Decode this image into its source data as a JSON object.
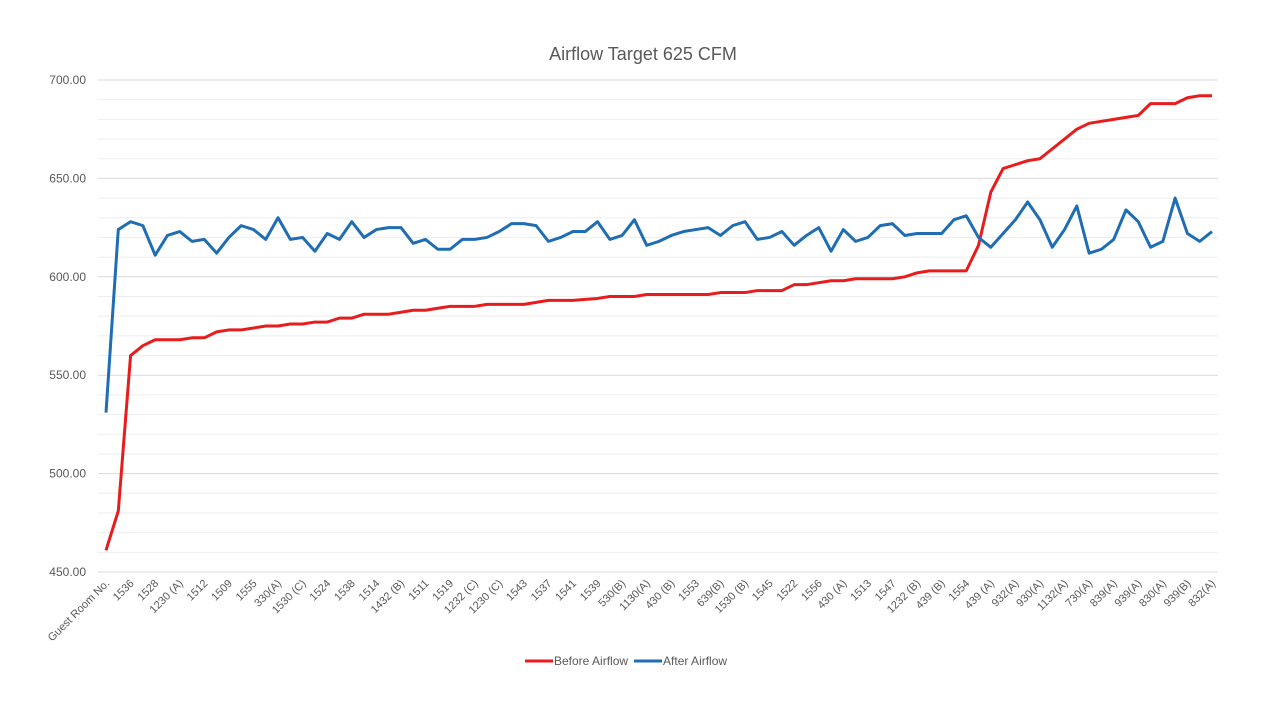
{
  "chart_data": {
    "type": "line",
    "title": "Airflow Target  625 CFM",
    "categories": [
      "Guest Room No.",
      null,
      "1536",
      null,
      "1528",
      null,
      "1230 (A)",
      null,
      "1512",
      null,
      "1509",
      null,
      "1555",
      null,
      "330(A)",
      null,
      "1530 (C)",
      null,
      "1524",
      null,
      "1538",
      null,
      "1514",
      null,
      "1432 (B)",
      null,
      "1511",
      null,
      "1519",
      null,
      "1232 (C)",
      null,
      "1230 (C)",
      null,
      "1543",
      null,
      "1537",
      null,
      "1541",
      null,
      "1539",
      null,
      "530(B)",
      null,
      "1130(A)",
      null,
      "430 (B)",
      null,
      "1553",
      null,
      "639(B)",
      null,
      "1530 (B)",
      null,
      "1545",
      null,
      "1522",
      null,
      "1556",
      null,
      "430 (A)",
      null,
      "1513",
      null,
      "1547",
      null,
      "1232 (B)",
      null,
      "439 (B)",
      null,
      "1554",
      null,
      "439 (A)",
      null,
      "932(A)",
      null,
      "930(A)",
      null,
      "1132(A)",
      null,
      "730(A)",
      null,
      "839(A)",
      null,
      "939(A)",
      null,
      "830(A)",
      null,
      "939(B)",
      null,
      "832(A)"
    ],
    "series": [
      {
        "name": "Before Airflow",
        "color": "#e81c1c",
        "values": [
          461,
          481,
          560,
          565,
          568,
          568,
          568,
          569,
          569,
          572,
          573,
          573,
          574,
          575,
          575,
          576,
          576,
          577,
          577,
          579,
          579,
          581,
          581,
          581,
          582,
          583,
          583,
          584,
          585,
          585,
          585,
          586,
          586,
          586,
          586,
          587,
          588,
          588,
          588,
          588.5,
          589,
          590,
          590,
          590,
          591,
          591,
          591,
          591,
          591,
          591,
          592,
          592,
          592,
          593,
          593,
          593,
          596,
          596,
          597,
          598,
          598,
          599,
          599,
          599,
          599,
          600,
          602,
          603,
          603,
          603,
          603,
          616,
          643,
          655,
          657,
          659,
          660,
          665,
          670,
          675,
          678,
          679,
          680,
          681,
          682,
          688,
          688,
          688,
          691,
          692,
          692
        ]
      },
      {
        "name": "After Airflow",
        "color": "#1f6db3",
        "values": [
          531,
          624,
          628,
          626,
          611,
          621,
          623,
          618,
          619,
          612,
          620,
          626,
          624,
          619,
          630,
          619,
          620,
          613,
          622,
          619,
          628,
          620,
          624,
          625,
          625,
          617,
          619,
          614,
          614,
          619,
          619,
          620,
          623,
          627,
          627,
          626,
          618,
          620,
          623,
          623,
          628,
          619,
          621,
          629,
          616,
          618,
          621,
          623,
          624,
          625,
          621,
          626,
          628,
          619,
          620,
          623,
          616,
          621,
          625,
          613,
          624,
          618,
          620,
          626,
          627,
          621,
          622,
          622,
          622,
          629,
          631,
          620,
          615,
          622,
          629,
          638,
          629,
          615,
          624,
          636,
          612,
          614,
          619,
          634,
          628,
          615,
          618,
          640,
          622,
          618,
          623
        ]
      }
    ],
    "ylim": [
      450,
      700
    ],
    "yticks": [
      {
        "value": 450,
        "label": "450.00"
      },
      {
        "value": 500,
        "label": "500.00"
      },
      {
        "value": 550,
        "label": "550.00"
      },
      {
        "value": 600,
        "label": "600.00"
      },
      {
        "value": 650,
        "label": "650.00"
      },
      {
        "value": 700,
        "label": "700.00"
      }
    ],
    "minor_yticks": [
      460,
      470,
      480,
      490,
      510,
      520,
      530,
      540,
      560,
      570,
      580,
      590,
      610,
      620,
      630,
      640,
      660,
      670,
      680,
      690
    ],
    "grid": true,
    "legend": "bottom"
  }
}
